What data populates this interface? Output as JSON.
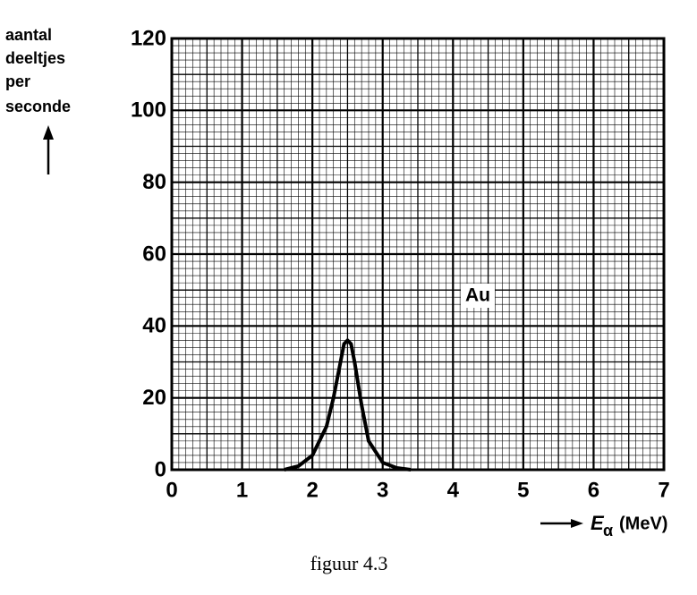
{
  "chart_data": {
    "type": "line",
    "ylabel": [
      "aantal",
      "deeltjes",
      "per",
      "seconde"
    ],
    "xlabel": {
      "symbol": "E",
      "subscript": "α",
      "unit": "(MeV)"
    },
    "caption": "figuur 4.3",
    "annotation": "Au",
    "x": [
      1.6,
      1.8,
      2.0,
      2.2,
      2.3,
      2.4,
      2.45,
      2.5,
      2.55,
      2.6,
      2.7,
      2.8,
      3.0,
      3.2,
      3.4
    ],
    "values": [
      0,
      1,
      4,
      12,
      20,
      30,
      35,
      36,
      35,
      30,
      18,
      8,
      2,
      0.5,
      0
    ],
    "color": "#000000",
    "xlim": [
      0,
      7
    ],
    "xticks": [
      0,
      1,
      2,
      3,
      4,
      5,
      6,
      7
    ],
    "ylim": [
      0,
      120
    ],
    "yticks": [
      0,
      20,
      40,
      60,
      80,
      100,
      120
    ],
    "grid": true
  }
}
